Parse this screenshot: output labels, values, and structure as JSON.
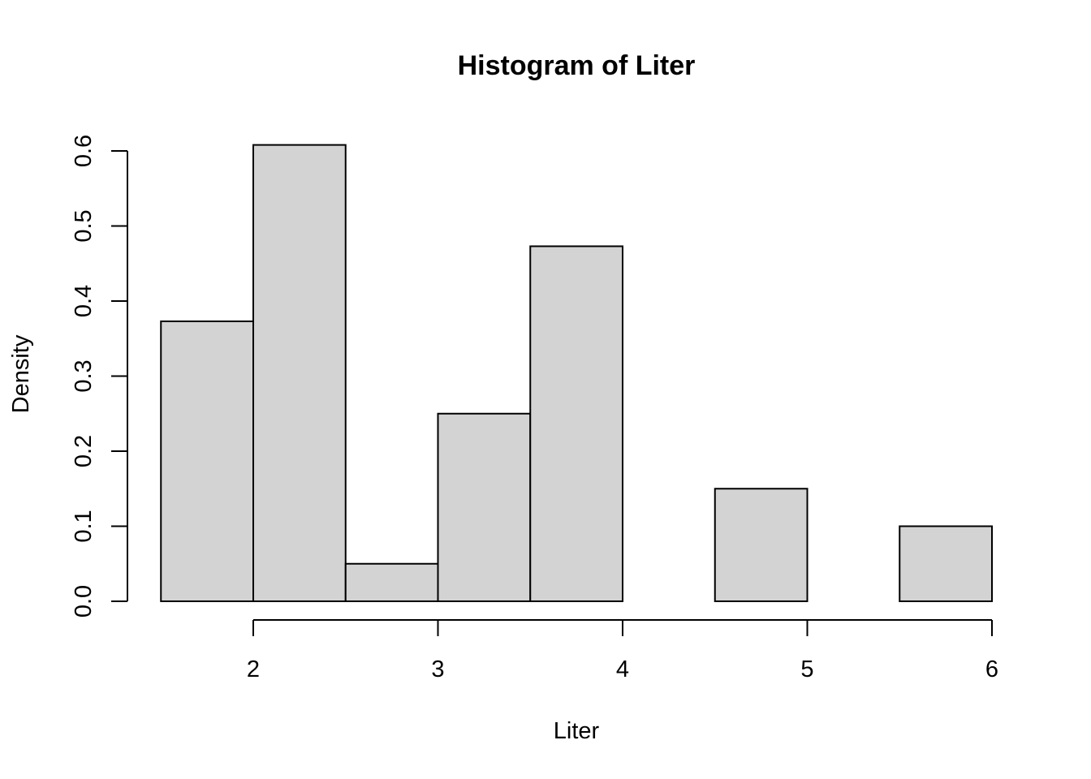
{
  "chart_data": {
    "type": "bar",
    "title": "Histogram of Liter",
    "xlabel": "Liter",
    "ylabel": "Density",
    "bin_edges": [
      1.5,
      2.0,
      2.5,
      3.0,
      3.5,
      4.0,
      4.5,
      5.0,
      5.5,
      6.0
    ],
    "values": [
      0.373,
      0.608,
      0.05,
      0.25,
      0.473,
      0.0,
      0.15,
      0.0,
      0.1
    ],
    "x_ticks": [
      "2",
      "3",
      "4",
      "5",
      "6"
    ],
    "y_ticks": [
      "0.0",
      "0.1",
      "0.2",
      "0.3",
      "0.4",
      "0.5",
      "0.6"
    ],
    "xlim": [
      1.5,
      6.0
    ],
    "ylim": [
      0,
      0.6
    ],
    "bar_color": "#d3d3d3",
    "grid": false
  }
}
